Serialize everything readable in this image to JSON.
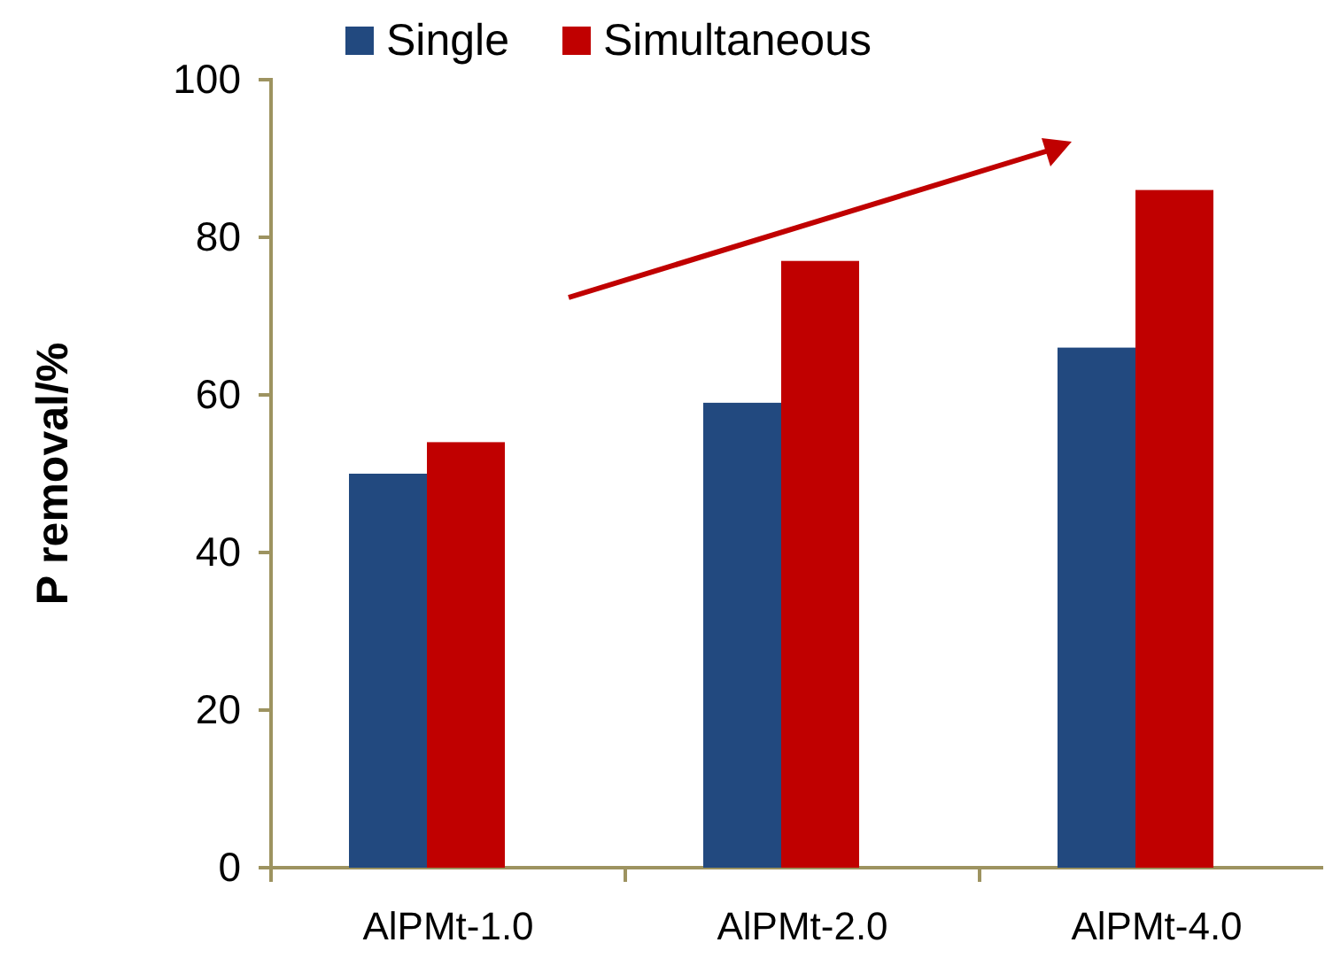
{
  "chart_data": {
    "type": "bar",
    "ylabel": "P removal/%",
    "categories": [
      "AlPMt-1.0",
      "AlPMt-2.0",
      "AlPMt-4.0"
    ],
    "series": [
      {
        "name": "Single",
        "color": "#22497f",
        "values": [
          50,
          59,
          66
        ]
      },
      {
        "name": "Simultaneous",
        "color": "#c00000",
        "values": [
          54,
          77,
          86
        ]
      }
    ],
    "ylim": [
      0,
      100
    ],
    "yticks": [
      0,
      20,
      40,
      60,
      80,
      100
    ],
    "grid": false,
    "legend": "top"
  }
}
